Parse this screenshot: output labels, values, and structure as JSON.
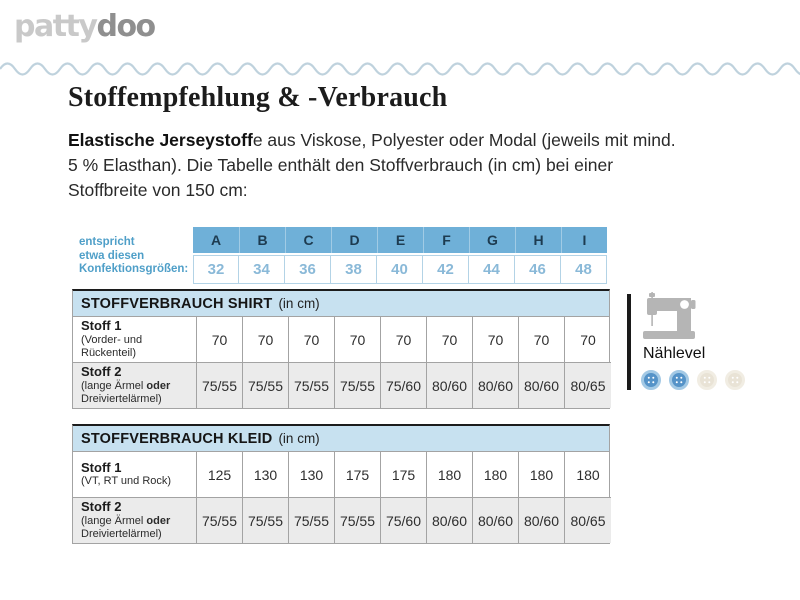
{
  "logo": {
    "part_light": "patty",
    "part_dark": "doo"
  },
  "header": {
    "title": "Stoffempfehlung & -Verbrauch"
  },
  "intro": {
    "lead_bold": "Elastische Jerseystoff",
    "text": "e aus Viskose, Polyester oder Modal (jeweils mit mind. 5 % Elasthan). Die Tabelle enthält den Stoffverbrauch (in cm) bei einer Stoffbreite von 150 cm:"
  },
  "size_table": {
    "caption_line1": "entspricht",
    "caption_line2": "etwa diesen",
    "caption_line3": "Konfektionsgrößen:",
    "letters": [
      "A",
      "B",
      "C",
      "D",
      "E",
      "F",
      "G",
      "H",
      "I"
    ],
    "sizes": [
      "32",
      "34",
      "36",
      "38",
      "40",
      "42",
      "44",
      "46",
      "48"
    ]
  },
  "shirt_table": {
    "title": "STOFFVERBRAUCH SHIRT",
    "unit": "(in cm)",
    "row1": {
      "label": "Stoff 1",
      "sublabel": "(Vorder- und Rückenteil)",
      "values": [
        "70",
        "70",
        "70",
        "70",
        "70",
        "70",
        "70",
        "70",
        "70"
      ]
    },
    "row2": {
      "label": "Stoff 2",
      "sublabel_pre": "(lange Ärmel ",
      "sublabel_bold": "oder",
      "sublabel_post": " Dreiviertelärmel)",
      "values": [
        "75/55",
        "75/55",
        "75/55",
        "75/55",
        "75/60",
        "80/60",
        "80/60",
        "80/60",
        "80/65"
      ]
    }
  },
  "kleid_table": {
    "title": "STOFFVERBRAUCH KLEID",
    "unit": "(in cm)",
    "row1": {
      "label": "Stoff 1",
      "sublabel": "(VT, RT und Rock)",
      "values": [
        "125",
        "130",
        "130",
        "175",
        "175",
        "180",
        "180",
        "180",
        "180"
      ]
    },
    "row2": {
      "label": "Stoff 2",
      "sublabel_pre": "(lange Ärmel ",
      "sublabel_bold": "oder",
      "sublabel_post": " Dreiviertelärmel)",
      "values": [
        "75/55",
        "75/55",
        "75/55",
        "75/55",
        "75/60",
        "80/60",
        "80/60",
        "80/60",
        "80/65"
      ]
    }
  },
  "naehlevel": {
    "label": "Nählevel",
    "level": 2,
    "max": 4
  },
  "colors": {
    "accent_blue": "#4f9fc8",
    "size_header_blue": "#6fb0d8",
    "size_number_blue": "#8ab9d8",
    "table_header_bg": "#c7e1f0",
    "navy_text": "#1d3b50",
    "wave_blue": "#bfd2dd",
    "row_gray": "#ebebeb",
    "logo_light_gray": "#c9c9c9",
    "logo_dark_gray": "#8f8f8f",
    "button_blue": "#5593c8",
    "button_beige": "#e9e3d6",
    "machine_gray": "#b5b5b5"
  }
}
